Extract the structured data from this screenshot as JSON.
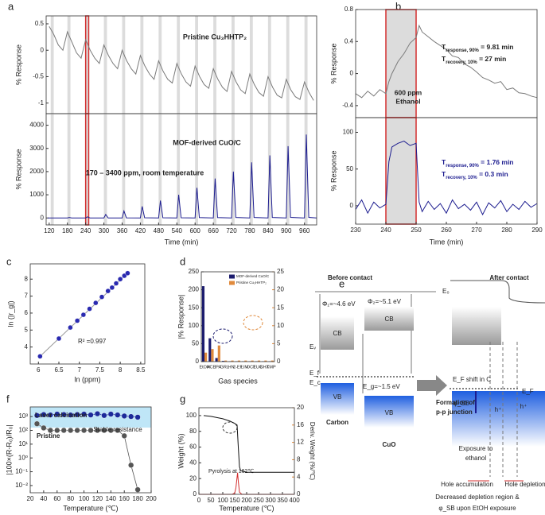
{
  "panel_labels": [
    "a",
    "b",
    "c",
    "d",
    "e",
    "f",
    "g"
  ],
  "chart_data": [
    {
      "type": "line",
      "ylabel": "% Response",
      "xlim": [
        110,
        1000
      ],
      "ylim": [
        -1.2,
        0.65
      ],
      "yticks": [
        -1,
        -0.5,
        0,
        0.5
      ],
      "exposure_start": [
        125,
        180,
        240,
        300,
        360,
        420,
        480,
        540,
        600,
        660,
        720,
        780,
        840,
        900,
        960
      ],
      "exposure_duration": 10,
      "highlight": 240,
      "annotations": [
        "Pristine Cu₃HHTP₂"
      ],
      "x": [
        120,
        135,
        150,
        165,
        180,
        195,
        210,
        225,
        240,
        255,
        270,
        285,
        300,
        315,
        330,
        345,
        360,
        375,
        390,
        405,
        420,
        435,
        450,
        465,
        480,
        495,
        510,
        525,
        540,
        555,
        570,
        585,
        600,
        615,
        630,
        645,
        660,
        675,
        690,
        705,
        720,
        735,
        750,
        765,
        780,
        795,
        810,
        825,
        840,
        855,
        870,
        885,
        900,
        915,
        930,
        945,
        960,
        975,
        990
      ],
      "series": [
        {
          "name": "Pristine",
          "color": "#7a7a7a",
          "values": [
            0.45,
            0.3,
            0.1,
            0.0,
            0.35,
            0.15,
            -0.05,
            -0.15,
            0.2,
            0.0,
            -0.15,
            -0.25,
            0.1,
            -0.1,
            -0.25,
            -0.35,
            0.0,
            -0.2,
            -0.35,
            -0.45,
            -0.1,
            -0.3,
            -0.45,
            -0.55,
            -0.2,
            -0.4,
            -0.55,
            -0.62,
            -0.25,
            -0.45,
            -0.6,
            -0.68,
            -0.3,
            -0.5,
            -0.65,
            -0.72,
            -0.35,
            -0.55,
            -0.7,
            -0.78,
            -0.4,
            -0.6,
            -0.75,
            -0.82,
            -0.45,
            -0.65,
            -0.8,
            -0.87,
            -0.5,
            -0.7,
            -0.85,
            -0.9,
            -0.55,
            -0.75,
            -0.88,
            -0.93,
            -0.6,
            -0.8,
            -0.95
          ]
        }
      ]
    },
    {
      "type": "line",
      "xlabel": "Time (min)",
      "ylabel": "% Response",
      "xlim": [
        110,
        1000
      ],
      "xticks": [
        120,
        180,
        240,
        300,
        360,
        420,
        480,
        540,
        600,
        660,
        720,
        780,
        840,
        900,
        960
      ],
      "ylim": [
        -300,
        4500
      ],
      "yticks": [
        0,
        1000,
        2000,
        3000,
        4000
      ],
      "exposure_start": [
        125,
        180,
        240,
        300,
        360,
        420,
        480,
        540,
        600,
        660,
        720,
        780,
        840,
        900,
        960
      ],
      "exposure_duration": 10,
      "highlight": 240,
      "annotations": [
        "MOF-derived CuO/C",
        "170 – 3400 ppm, room temperature"
      ],
      "x": [
        115,
        180,
        186,
        194,
        240,
        246,
        254,
        300,
        306,
        314,
        360,
        366,
        374,
        420,
        426,
        434,
        480,
        486,
        494,
        540,
        546,
        554,
        600,
        606,
        614,
        660,
        666,
        674,
        720,
        726,
        734,
        780,
        786,
        794,
        840,
        846,
        854,
        900,
        906,
        914,
        960,
        966,
        974,
        1000
      ],
      "series": [
        {
          "name": "MOF-derived CuO/C",
          "color": "#1c1c8f",
          "values": [
            0,
            0,
            20,
            0,
            0,
            50,
            0,
            0,
            150,
            0,
            0,
            300,
            5,
            0,
            500,
            10,
            0,
            750,
            10,
            0,
            1000,
            10,
            0,
            1300,
            15,
            0,
            1700,
            15,
            0,
            2000,
            20,
            0,
            2400,
            20,
            0,
            2700,
            20,
            0,
            3100,
            25,
            0,
            3600,
            25,
            0
          ]
        }
      ]
    },
    {
      "type": "line",
      "ylabel": "% Response",
      "xlim": [
        230,
        290
      ],
      "ylim": [
        -0.55,
        0.8
      ],
      "yticks": [
        -0.4,
        0,
        0.4,
        0.8
      ],
      "exposure_start": [
        240
      ],
      "exposure_duration": 10,
      "highlight": 240,
      "annotations": [
        "600 ppm",
        "Ethanol",
        [
          {
            "text": "T"
          },
          {
            "text": "response, 90%",
            "sub": true
          },
          {
            "text": " = 9.81 min"
          }
        ],
        [
          {
            "text": "T"
          },
          {
            "text": "recovery, 10%",
            "sub": true
          },
          {
            "text": " = 27 min"
          }
        ]
      ],
      "x": [
        230,
        232,
        234,
        236,
        238,
        240,
        241,
        242,
        244,
        246,
        248,
        250,
        251,
        252,
        254,
        256,
        258,
        260,
        262,
        264,
        266,
        268,
        270,
        272,
        274,
        276,
        278,
        280,
        282,
        284,
        286,
        288,
        290
      ],
      "series": [
        {
          "name": "Pristine",
          "color": "#7a7a7a",
          "values": [
            -0.25,
            -0.3,
            -0.22,
            -0.28,
            -0.2,
            -0.25,
            -0.1,
            0.0,
            0.15,
            0.25,
            0.38,
            0.45,
            0.6,
            0.52,
            0.46,
            0.4,
            0.35,
            0.3,
            0.22,
            0.2,
            0.12,
            0.08,
            0.02,
            -0.05,
            -0.08,
            -0.12,
            -0.1,
            -0.2,
            -0.18,
            -0.24,
            -0.25,
            -0.28,
            -0.3
          ]
        }
      ]
    },
    {
      "type": "line",
      "xlabel": "Time (min)",
      "ylabel": "% Response",
      "xlim": [
        230,
        290
      ],
      "xticks": [
        230,
        240,
        250,
        260,
        270,
        280,
        290
      ],
      "ylim": [
        -25,
        120
      ],
      "yticks": [
        0,
        50,
        100
      ],
      "exposure_start": [
        240
      ],
      "exposure_duration": 10,
      "highlight": 240,
      "annotations": [
        [
          {
            "text": "T"
          },
          {
            "text": "response, 90%",
            "sub": true
          },
          {
            "text": " = 1.76 min"
          }
        ],
        [
          {
            "text": "T"
          },
          {
            "text": "recovery, 10%",
            "sub": true
          },
          {
            "text": " = 0.3 min"
          }
        ]
      ],
      "x": [
        230,
        232,
        234,
        236,
        238,
        240,
        241,
        242,
        244,
        246,
        248,
        250,
        251,
        252,
        254,
        256,
        258,
        260,
        262,
        264,
        266,
        268,
        270,
        272,
        274,
        276,
        278,
        280,
        282,
        284,
        286,
        288,
        290
      ],
      "series": [
        {
          "name": "MOF-derived CuO/C",
          "color": "#1c1c8f",
          "values": [
            -5,
            8,
            -10,
            5,
            -3,
            2,
            60,
            80,
            85,
            88,
            82,
            85,
            5,
            -8,
            6,
            -5,
            3,
            -10,
            8,
            -4,
            2,
            -6,
            5,
            -12,
            4,
            -3,
            7,
            -8,
            2,
            -5,
            6,
            -2,
            3
          ]
        }
      ]
    },
    {
      "type": "scatter",
      "xlabel": "ln (ppm)",
      "ylabel": "ln (|r_g|)",
      "xlim": [
        5.8,
        8.6
      ],
      "xticks": [
        6,
        6.5,
        7,
        7.5,
        8,
        8.5
      ],
      "ylim": [
        3,
        8.9
      ],
      "yticks": [
        4,
        5,
        6,
        7,
        8
      ],
      "annotations": [
        "R² =0.997"
      ],
      "x": [
        6.04,
        6.5,
        6.78,
        6.95,
        7.1,
        7.25,
        7.4,
        7.55,
        7.7,
        7.8,
        7.9,
        8.0,
        8.1,
        8.18
      ],
      "series": [
        {
          "name": "MOF-derived CuO/C",
          "color": "#2a2ab0",
          "values": [
            3.45,
            4.5,
            5.15,
            5.55,
            5.9,
            6.25,
            6.6,
            6.95,
            7.3,
            7.5,
            7.75,
            8.0,
            8.2,
            8.35
          ]
        }
      ]
    },
    {
      "type": "bar",
      "xlabel": "Gas species",
      "ylabel": "|% Response|",
      "categories": [
        "EtOH",
        "ACE",
        "IPA",
        "GRL",
        "HN",
        "2-EF",
        "LIM",
        "OCT",
        "EUG",
        "CHX",
        "TMP"
      ],
      "ylim": [
        0,
        250
      ],
      "yticks": [
        0,
        50,
        100,
        150,
        200,
        250
      ],
      "y2lim": [
        0,
        25
      ],
      "y2ticks": [
        0,
        5,
        10,
        15,
        20,
        25
      ],
      "series": [
        {
          "name": "MOF-derived CuO/C",
          "color": "#1c1c6e",
          "values": [
            210,
            65,
            10,
            2,
            1,
            1,
            1,
            1,
            1,
            1,
            1
          ]
        },
        {
          "name": "Pristine Cu₃HHTP₂",
          "color": "#e08a3c",
          "axis": "y2",
          "values": [
            2.5,
            3.5,
            4.5,
            0.3,
            0.3,
            0.3,
            0.3,
            0.3,
            0.3,
            0.3,
            0.3
          ]
        }
      ]
    },
    {
      "type": "line",
      "ylog": true,
      "xlabel": "Temperature (℃)",
      "ylabel": "|100×(R-R₀)/R₀|",
      "xlim": [
        20,
        200
      ],
      "xticks": [
        20,
        40,
        60,
        80,
        100,
        120,
        140,
        160,
        180,
        200
      ],
      "ylim": [
        0.003,
        5000
      ],
      "yticks": [
        {
          "value": 0.01,
          "label": "10⁻²"
        },
        {
          "value": 0.1,
          "label": "10⁻¹"
        },
        {
          "value": 1,
          "label": "10⁰"
        },
        {
          "value": 10,
          "label": "10¹"
        },
        {
          "value": 100,
          "label": "10²"
        },
        {
          "value": 1000,
          "label": "10³"
        }
      ],
      "annotations": [
        "Stable resistance"
      ],
      "x": [
        30,
        40,
        50,
        60,
        70,
        80,
        90,
        100,
        110,
        120,
        130,
        140,
        150,
        160,
        170,
        180
      ],
      "series": [
        {
          "name": "Laser calcination",
          "color": "#1c2a9a",
          "markers": true,
          "values": [
            1200,
            1400,
            1300,
            1500,
            1400,
            1300,
            1400,
            1500,
            1300,
            1600,
            1200,
            1500,
            1300,
            1100,
            1000,
            900
          ]
        },
        {
          "name": "Pristine",
          "color": "#555555",
          "markers": true,
          "values": [
            300,
            150,
            100,
            100,
            100,
            100,
            100,
            100,
            100,
            100,
            100,
            100,
            100,
            40,
            0.3,
            0.005
          ]
        }
      ]
    },
    {
      "type": "line",
      "xlabel": "Temperature (℃)",
      "ylabel": "Weight (%)",
      "y2label": "Deriv. Weight (%/℃)",
      "xlim": [
        0,
        400
      ],
      "xticks": [
        0,
        50,
        100,
        150,
        200,
        250,
        300,
        350,
        400
      ],
      "ylim": [
        0,
        110
      ],
      "yticks": [
        0,
        20,
        40,
        60,
        80,
        100
      ],
      "y2lim": [
        0,
        20
      ],
      "y2ticks": [
        0,
        4,
        8,
        12,
        16,
        20
      ],
      "annotations": [
        "Pyrolysis at 162℃"
      ],
      "series": [
        {
          "name": "Weight",
          "color": "#111111",
          "x": [
            20,
            50,
            100,
            130,
            150,
            160,
            165,
            170,
            175,
            200,
            300,
            400
          ],
          "values": [
            100,
            99,
            96,
            93,
            90,
            88,
            60,
            35,
            30,
            28,
            28,
            28
          ]
        },
        {
          "name": "Deriv. Weight",
          "color": "#d32f2f",
          "axis": "y2",
          "x": [
            0,
            140,
            150,
            155,
            160,
            162,
            165,
            170,
            180,
            400
          ],
          "values": [
            0,
            0,
            0.3,
            1.5,
            4,
            5,
            3,
            0.5,
            0,
            0
          ]
        }
      ]
    }
  ],
  "diagram": {
    "texts": [
      "Before contact",
      "After contact",
      "E₀",
      "Φ₁=~4.6 eV",
      "Φ₂=~5.1 eV",
      "CB",
      "CB",
      "Eᵥ",
      "E_f",
      "E_c",
      "VB",
      "VB",
      "Carbon",
      "CuO",
      "E_g=~1.5 eV",
      "Formation of",
      "p-p junction",
      "E_F shift in C",
      "E_F",
      "φ_SB",
      "h⁺",
      "h⁺",
      "Exposure to",
      "ethanol",
      "Hole accumulation",
      "Hole depletion",
      "Decreased depletion region &",
      "φ_SB upon EtOH exposure"
    ]
  }
}
